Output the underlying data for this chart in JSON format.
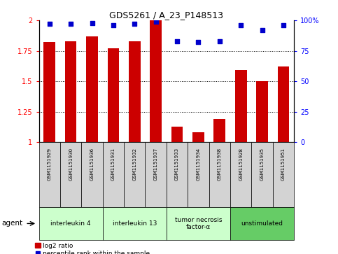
{
  "title": "GDS5261 / A_23_P148513",
  "samples": [
    "GSM1151929",
    "GSM1151930",
    "GSM1151936",
    "GSM1151931",
    "GSM1151932",
    "GSM1151937",
    "GSM1151933",
    "GSM1151934",
    "GSM1151938",
    "GSM1151928",
    "GSM1151935",
    "GSM1151951"
  ],
  "log2_ratio": [
    1.82,
    1.83,
    1.87,
    1.77,
    1.83,
    2.0,
    1.13,
    1.08,
    1.19,
    1.59,
    1.5,
    1.62
  ],
  "percentile_rank": [
    97,
    97,
    98,
    96,
    97,
    99,
    83,
    82,
    83,
    96,
    92,
    96
  ],
  "ylim_left": [
    1.0,
    2.0
  ],
  "ylim_right": [
    0,
    100
  ],
  "yticks_left": [
    1.0,
    1.25,
    1.5,
    1.75,
    2.0
  ],
  "yticks_right": [
    0,
    25,
    50,
    75,
    100
  ],
  "groups": [
    {
      "label": "interleukin 4",
      "start": 0,
      "end": 3,
      "color": "#ccffcc"
    },
    {
      "label": "interleukin 13",
      "start": 3,
      "end": 6,
      "color": "#ccffcc"
    },
    {
      "label": "tumor necrosis\nfactor-α",
      "start": 6,
      "end": 9,
      "color": "#ccffcc"
    },
    {
      "label": "unstimulated",
      "start": 9,
      "end": 12,
      "color": "#66cc66"
    }
  ],
  "bar_color": "#cc0000",
  "dot_color": "#0000cc",
  "bar_width": 0.55,
  "background_color": "#ffffff",
  "legend_log2": "log2 ratio",
  "legend_pct": "percentile rank within the sample",
  "agent_label": "agent"
}
